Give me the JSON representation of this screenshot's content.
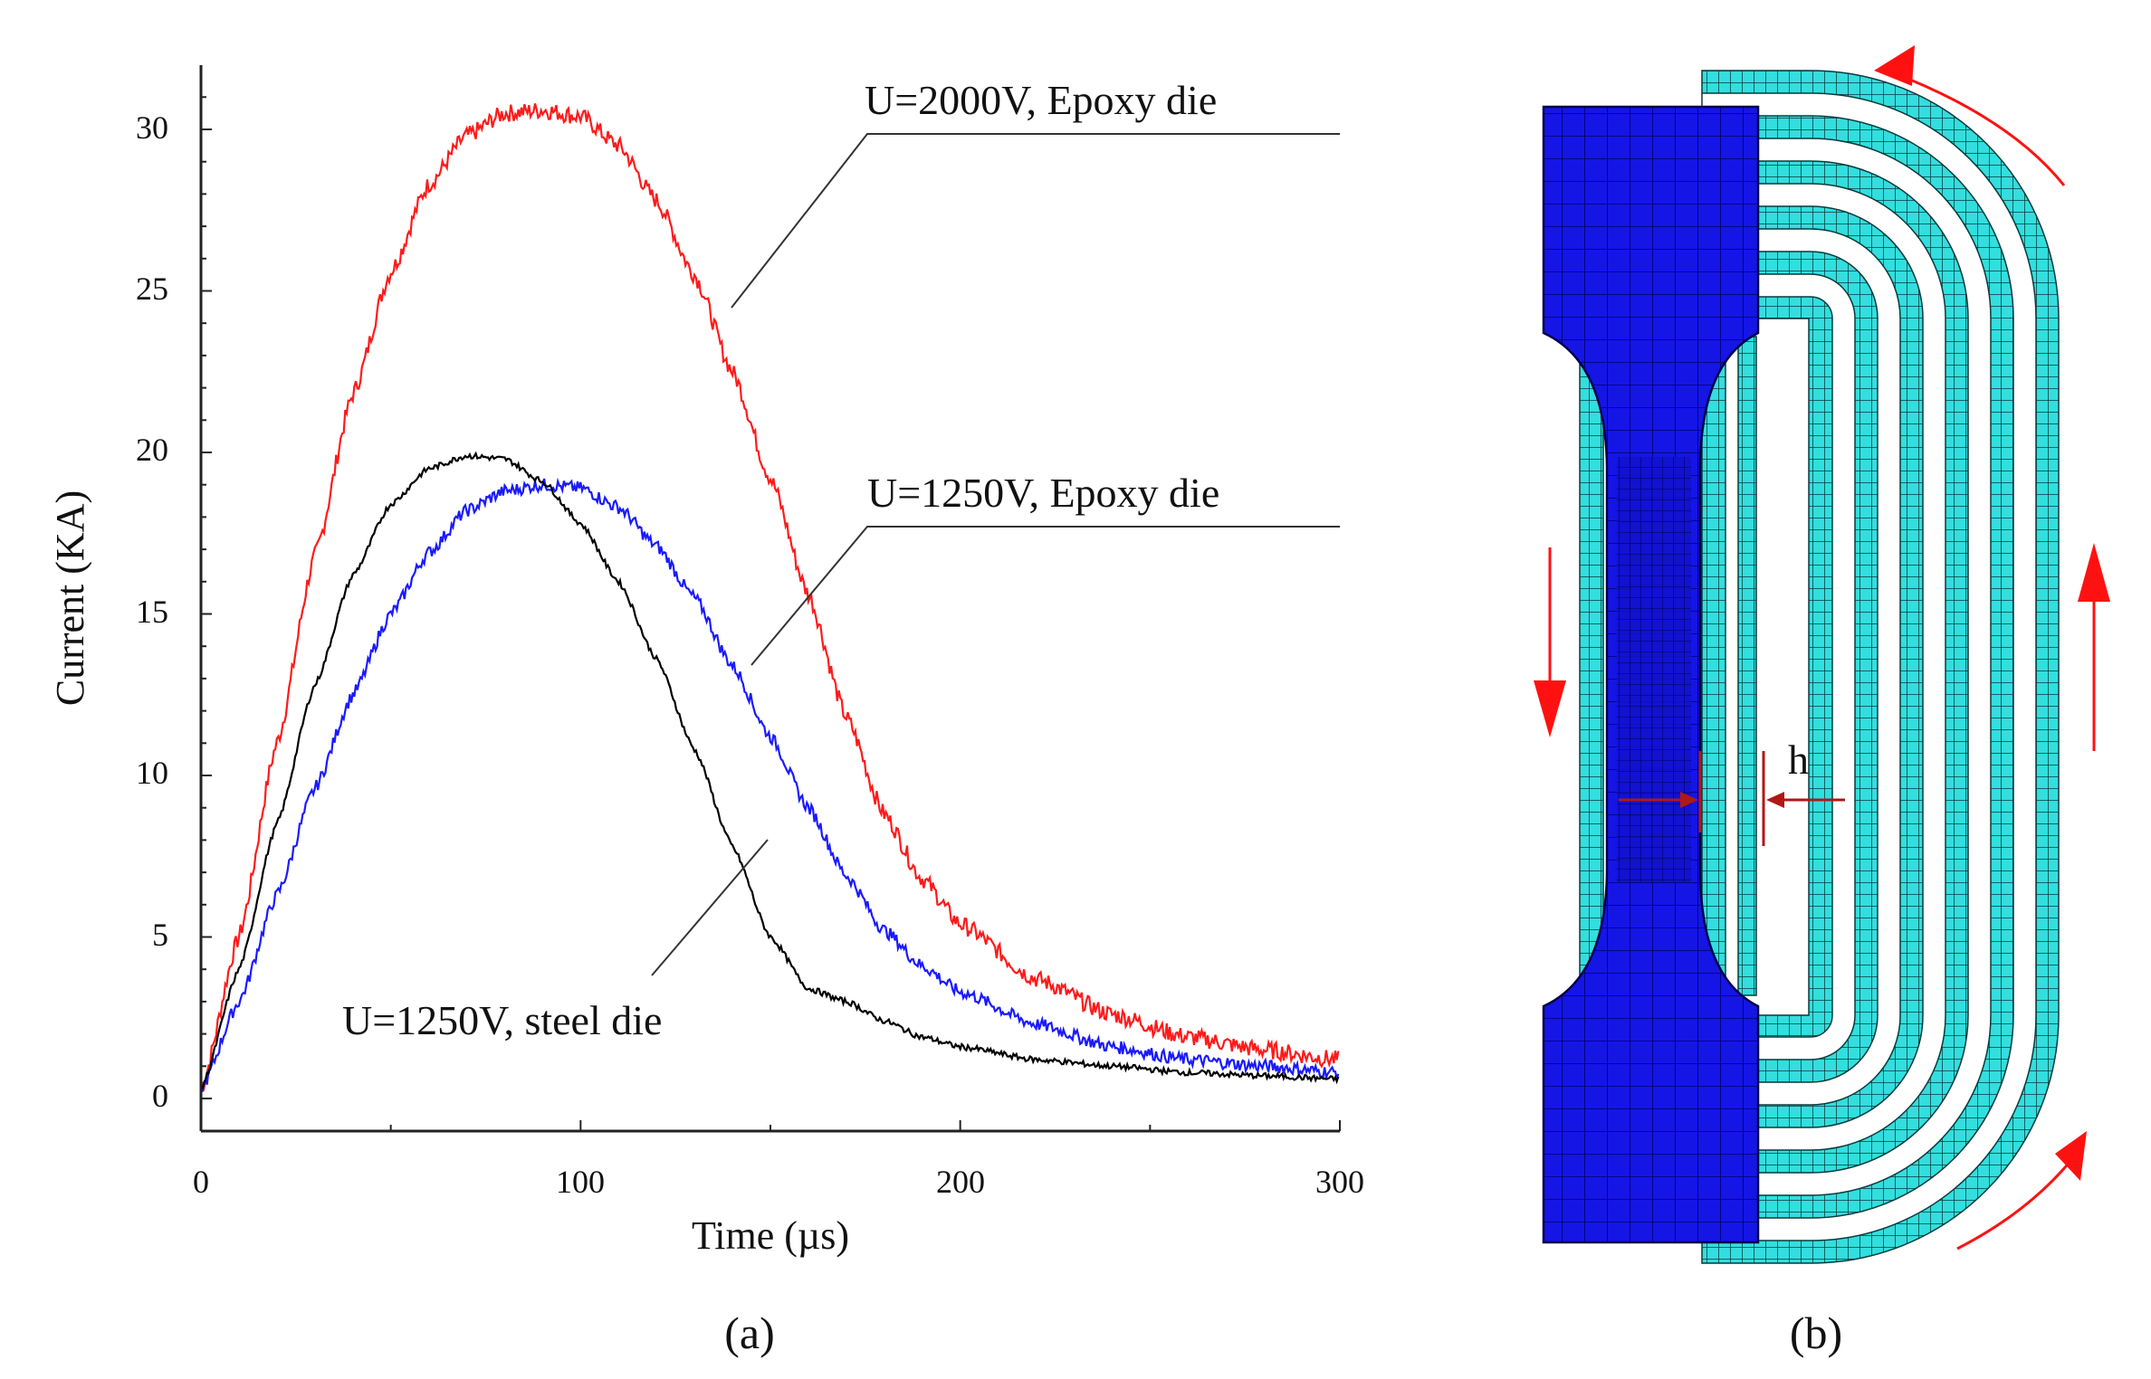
{
  "panel_a": {
    "caption": "(a)",
    "chart_data": {
      "type": "line",
      "title": "",
      "xlabel": "Time (µs)",
      "ylabel": "Current (KA)",
      "xlim": [
        0,
        300
      ],
      "ylim": [
        0,
        32
      ],
      "x_ticks": [
        "0",
        "100",
        "200",
        "300"
      ],
      "y_ticks": [
        "0",
        "5",
        "10",
        "15",
        "20",
        "25",
        "30"
      ],
      "grid": false,
      "x": [
        0,
        10,
        20,
        30,
        40,
        50,
        60,
        70,
        80,
        90,
        100,
        110,
        120,
        130,
        140,
        150,
        160,
        170,
        180,
        190,
        200,
        220,
        240,
        260,
        280,
        300
      ],
      "series": [
        {
          "name": "U=2000V, Epoxy die",
          "color": "#ff1a1a",
          "values": [
            0.3,
            5.0,
            11.0,
            16.8,
            21.8,
            25.6,
            28.3,
            29.8,
            30.5,
            30.6,
            30.4,
            29.5,
            27.8,
            25.5,
            22.5,
            19.2,
            15.6,
            11.8,
            8.8,
            6.8,
            5.4,
            3.7,
            2.6,
            1.9,
            1.5,
            1.2
          ]
        },
        {
          "name": "U=1250V, Epoxy die",
          "color": "#1a1aff",
          "values": [
            0.3,
            3.0,
            6.3,
            9.6,
            12.5,
            15.0,
            16.9,
            18.2,
            18.8,
            19.0,
            18.9,
            18.3,
            17.1,
            15.5,
            13.4,
            11.2,
            9.0,
            6.9,
            5.2,
            4.1,
            3.3,
            2.3,
            1.6,
            1.2,
            1.0,
            0.8
          ]
        },
        {
          "name": "U=1250V, steel die",
          "color": "#000000",
          "values": [
            0.3,
            4.0,
            8.5,
            12.8,
            16.2,
            18.4,
            19.5,
            19.9,
            19.8,
            19.1,
            17.8,
            16.0,
            13.6,
            10.8,
            7.8,
            5.0,
            3.4,
            3.0,
            2.4,
            1.9,
            1.6,
            1.2,
            1.0,
            0.8,
            0.7,
            0.6
          ]
        }
      ],
      "annotations": [
        "U=2000V, Epoxy die",
        "U=1250V, Epoxy die",
        "U=1250V, steel die"
      ]
    }
  },
  "panel_b": {
    "caption": "(b)",
    "gap_label": "h",
    "colors": {
      "sheet": "#1515e6",
      "sheet_grid": "#000060",
      "coil": "#33dede",
      "coil_grid": "#0a3a3a",
      "current_arrow": "#ff1111",
      "dim_arrow": "#b01818"
    }
  }
}
